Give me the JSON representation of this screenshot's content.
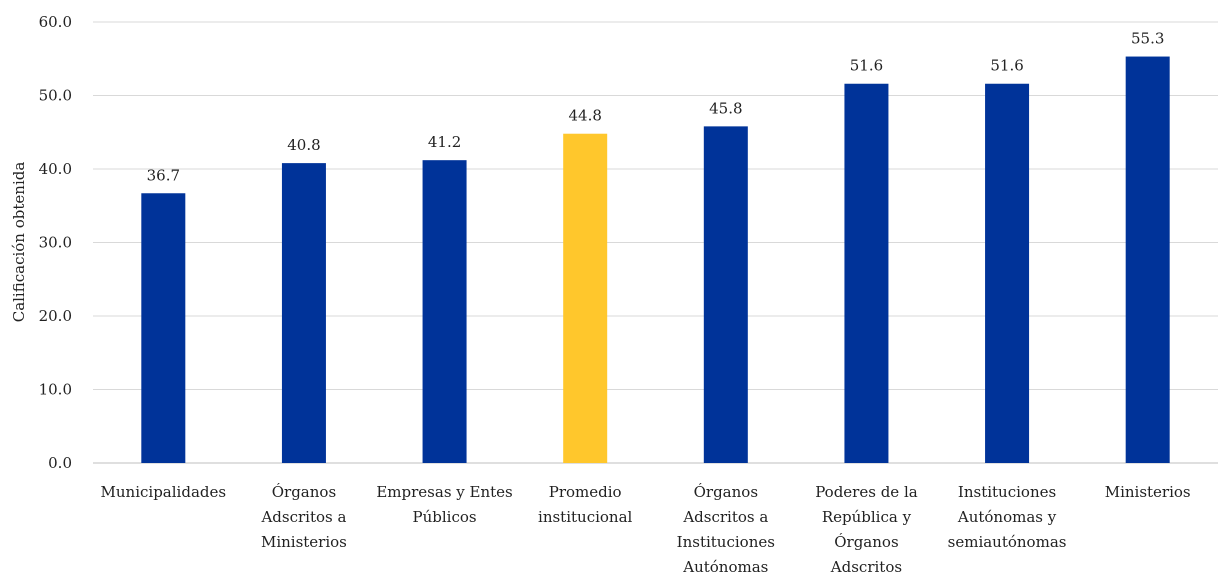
{
  "chart_data": {
    "type": "bar",
    "title": "",
    "xlabel": "",
    "ylabel": "Calificación obtenida",
    "ylim": [
      0,
      60
    ],
    "yticks": [
      "0.0",
      "10.0",
      "20.0",
      "30.0",
      "40.0",
      "50.0",
      "60.0"
    ],
    "grid": true,
    "legend": "none",
    "categories": [
      [
        "Municipalidades"
      ],
      [
        "Órganos",
        "Adscritos a",
        "Ministerios"
      ],
      [
        "Empresas y Entes",
        "Públicos"
      ],
      [
        "Promedio",
        "institucional"
      ],
      [
        "Órganos",
        "Adscritos a",
        "Instituciones",
        "Autónomas"
      ],
      [
        "Poderes de la",
        "República y",
        "Órganos",
        "Adscritos"
      ],
      [
        "Instituciones",
        "Autónomas y",
        "semiautónomas"
      ],
      [
        "Ministerios"
      ]
    ],
    "values": [
      36.7,
      40.8,
      41.2,
      44.8,
      45.8,
      51.6,
      51.6,
      55.3
    ],
    "value_labels": [
      "36.7",
      "40.8",
      "41.2",
      "44.8",
      "45.8",
      "51.6",
      "51.6",
      "55.3"
    ],
    "highlight_index": 3,
    "colors": {
      "bar": "#003399",
      "highlight": "#FFC72C",
      "grid": "#d9d9d9"
    }
  }
}
